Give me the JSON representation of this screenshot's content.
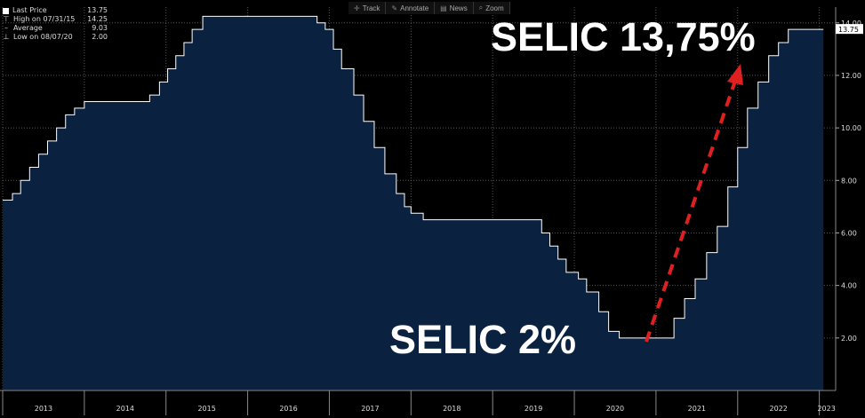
{
  "legend": {
    "last_price_label": "Last Price",
    "last_price_value": "13.75",
    "high_label": "High on 07/31/15",
    "high_value": "14.25",
    "average_label": "Average",
    "average_value": "9.03",
    "low_label": "Low on 08/07/20",
    "low_value": "2.00"
  },
  "toolbar": {
    "track": "Track",
    "annotate": "Annotate",
    "news": "News",
    "zoom": "Zoom"
  },
  "annotations": {
    "top": "SELIC 13,75%",
    "low": "SELIC 2%"
  },
  "last_value_tag": "13.75",
  "colors": {
    "background": "#000000",
    "area_fill": "#0a2240",
    "line": "#ffffff",
    "arrow": "#e02020"
  },
  "chart_data": {
    "type": "area",
    "title": "",
    "xlabel": "",
    "ylabel": "",
    "ylim": [
      0,
      14.6
    ],
    "yticks": [
      "2.00",
      "4.00",
      "6.00",
      "8.00",
      "10.00",
      "12.00",
      "14.00"
    ],
    "year_labels": [
      "2013",
      "2014",
      "2015",
      "2016",
      "2017",
      "2018",
      "2019",
      "2020",
      "2021",
      "2022",
      "2023"
    ],
    "grid": true,
    "series": [
      {
        "x": [
          2013.0,
          2013.12,
          2013.22,
          2013.33,
          2013.44,
          2013.55,
          2013.66,
          2013.77,
          2013.88,
          2014.0,
          2014.1,
          2014.22,
          2014.33,
          2014.8,
          2014.92,
          2015.02,
          2015.12,
          2015.22,
          2015.32,
          2015.45,
          2015.55,
          2016.85,
          2016.95,
          2017.05,
          2017.15,
          2017.3,
          2017.42,
          2017.55,
          2017.68,
          2017.82,
          2017.92,
          2018.0,
          2018.15,
          2018.22,
          2019.6,
          2019.7,
          2019.8,
          2019.9,
          2020.05,
          2020.15,
          2020.3,
          2020.42,
          2020.55,
          2021.22,
          2021.35,
          2021.48,
          2021.62,
          2021.75,
          2021.88,
          2022.0,
          2022.12,
          2022.25,
          2022.38,
          2022.5,
          2022.62,
          2023.05
        ],
        "y": [
          7.25,
          7.5,
          8.0,
          8.5,
          9.0,
          9.5,
          10.0,
          10.5,
          10.75,
          11.0,
          11.0,
          11.0,
          11.0,
          11.25,
          11.75,
          12.25,
          12.75,
          13.25,
          13.75,
          14.25,
          14.25,
          14.0,
          13.75,
          13.0,
          12.25,
          11.25,
          10.25,
          9.25,
          8.25,
          7.5,
          7.0,
          6.75,
          6.5,
          6.5,
          6.0,
          5.5,
          5.0,
          4.5,
          4.25,
          3.75,
          3.0,
          2.25,
          2.0,
          2.75,
          3.5,
          4.25,
          5.25,
          6.25,
          7.75,
          9.25,
          10.75,
          11.75,
          12.75,
          13.25,
          13.75,
          13.75
        ]
      }
    ]
  }
}
